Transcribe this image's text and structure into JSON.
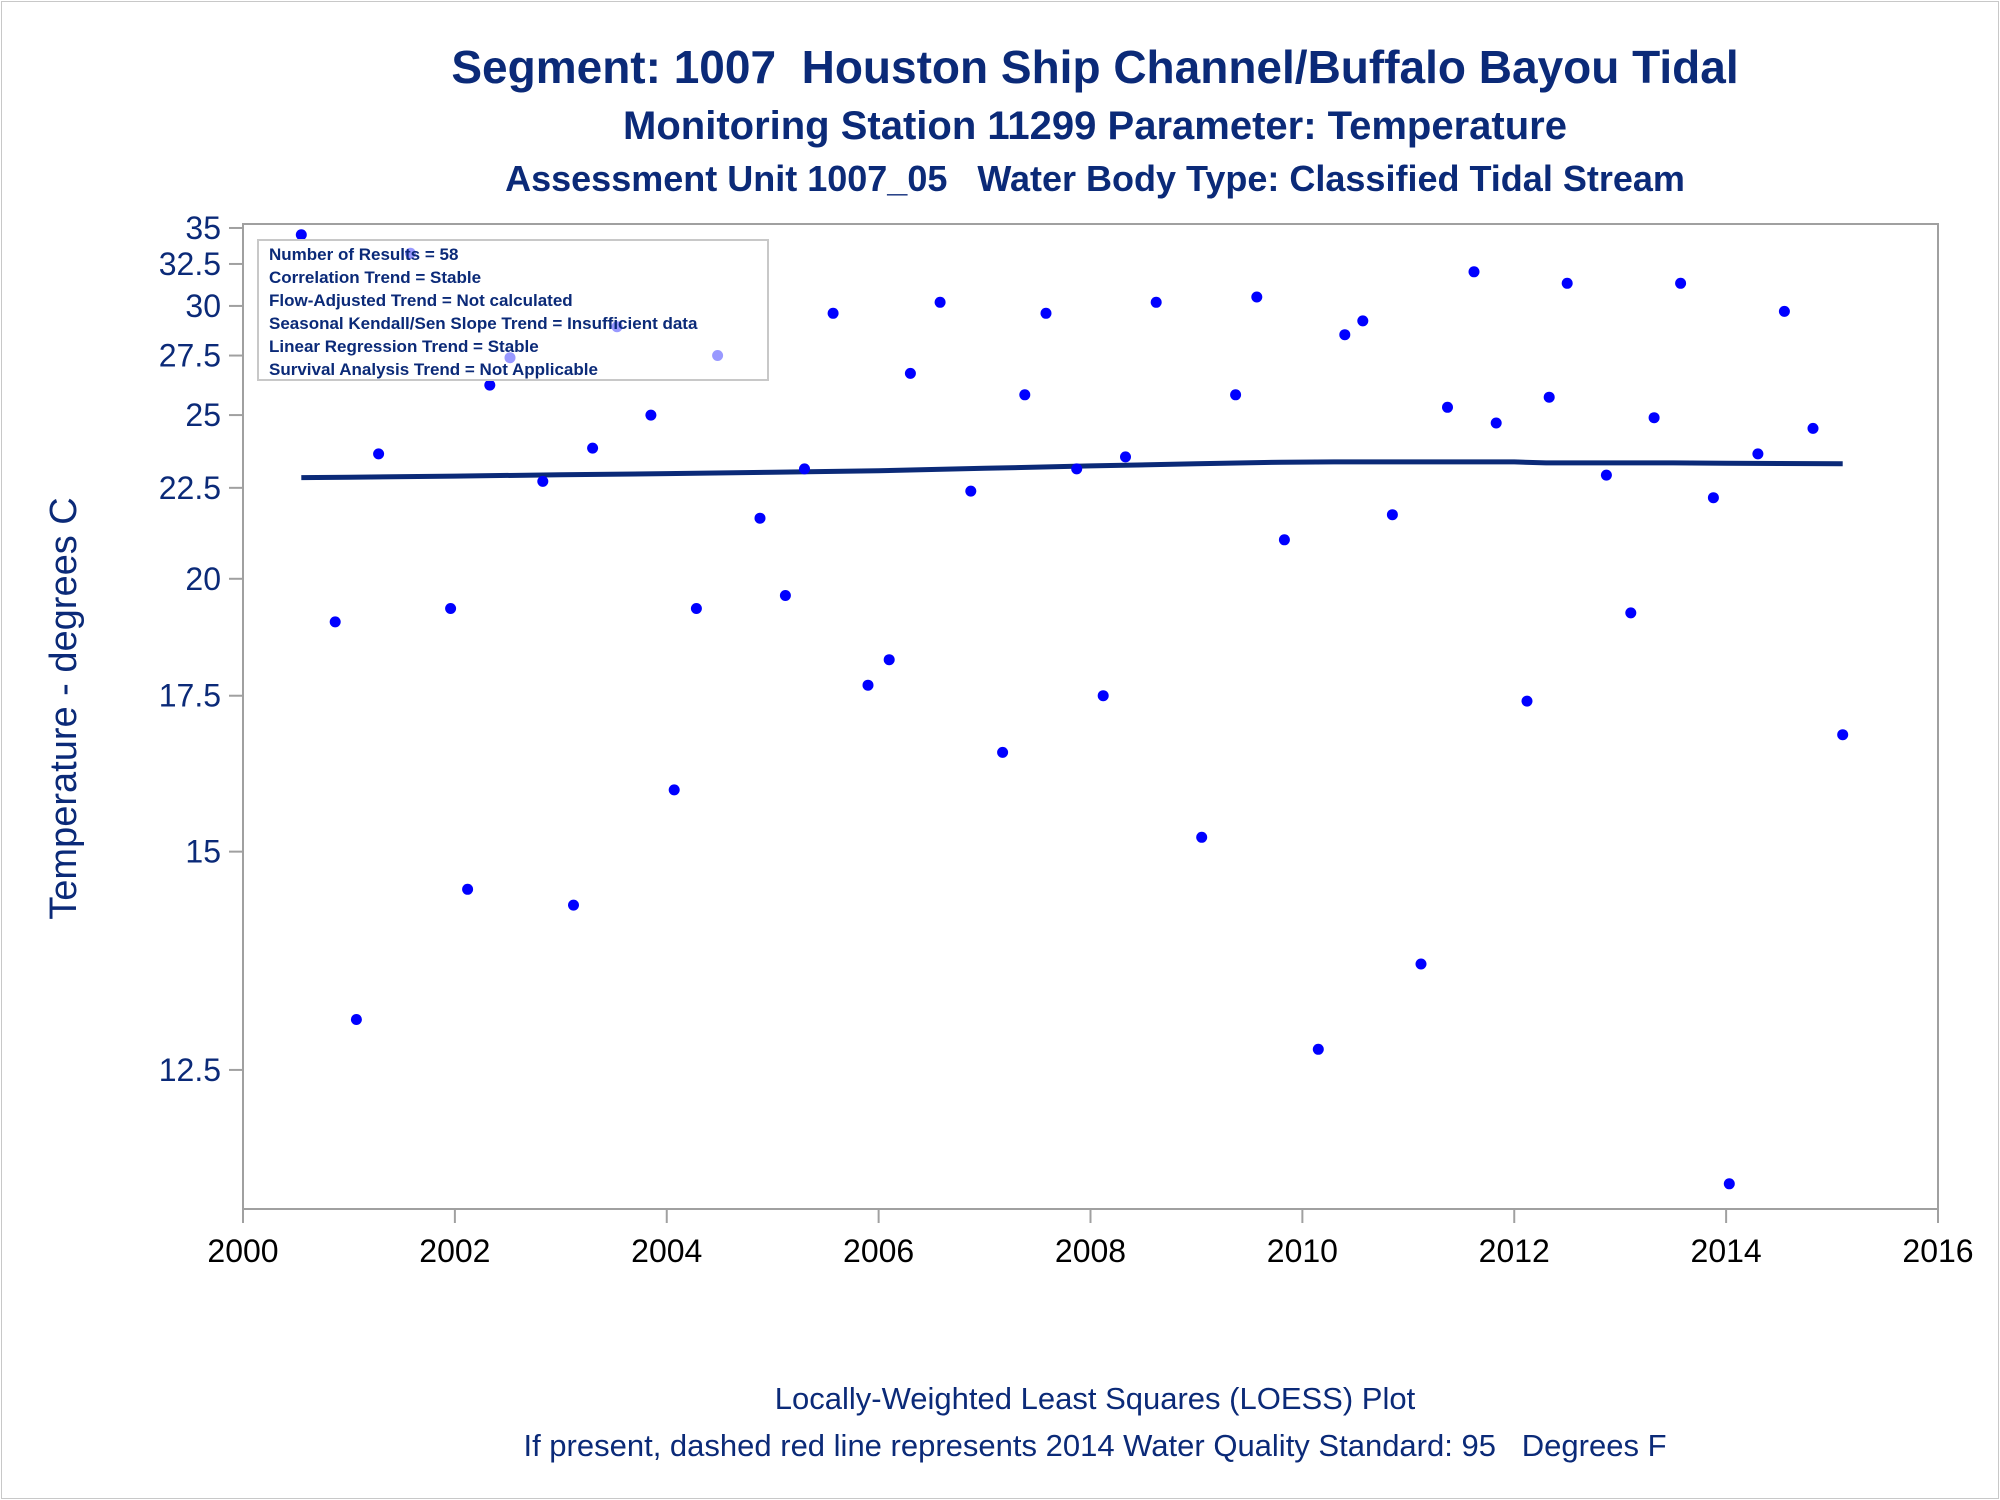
{
  "titles": {
    "line1": "Segment: 1007  Houston Ship Channel/Buffalo Bayou Tidal",
    "line2": "Monitoring Station 11299 Parameter: Temperature",
    "line3": "Assessment Unit 1007_05   Water Body Type: Classified Tidal Stream"
  },
  "footnotes": {
    "line1": "Locally-Weighted Least Squares (LOESS) Plot",
    "line2": "If present, dashed red line represents 2014 Water Quality Standard: 95   Degrees F"
  },
  "inset": {
    "lines": [
      "Number of Results = 58",
      "Correlation Trend = Stable",
      "Flow-Adjusted Trend = Not calculated",
      "Seasonal Kendall/Sen Slope Trend = Insufficient data",
      "Linear Regression Trend = Stable",
      "Survival Analysis Trend = Not Applicable"
    ]
  },
  "colors": {
    "points": "#0000ff",
    "trend_line": "#0b2a78",
    "text": "#0b2a78",
    "frame": "#a0a0a0"
  },
  "chart_data": {
    "type": "scatter",
    "xlabel": "",
    "ylabel": "Temperature - degrees C",
    "xlim": [
      2000,
      2016
    ],
    "ylim": [
      11.3,
      35.3
    ],
    "x_ticks": [
      2000,
      2002,
      2004,
      2006,
      2008,
      2010,
      2012,
      2014,
      2016
    ],
    "y_ticks": [
      "12.5",
      "15",
      "17.5",
      "20",
      "22.5",
      "25",
      "27.5",
      "30",
      "32.5",
      "35"
    ],
    "y_scale": "reciprocal",
    "grid": false,
    "points": {
      "x": [
        2000.55,
        2000.87,
        2001.07,
        2001.28,
        2001.58,
        2001.96,
        2002.12,
        2002.33,
        2002.52,
        2002.83,
        2003.12,
        2003.3,
        2003.53,
        2003.85,
        2004.07,
        2004.28,
        2004.48,
        2004.88,
        2005.12,
        2005.3,
        2005.57,
        2005.9,
        2006.1,
        2006.3,
        2006.58,
        2006.87,
        2007.17,
        2007.38,
        2007.58,
        2007.87,
        2008.12,
        2008.33,
        2008.62,
        2009.05,
        2009.37,
        2009.57,
        2009.83,
        2010.15,
        2010.4,
        2010.57,
        2010.85,
        2011.12,
        2011.37,
        2011.62,
        2011.83,
        2012.12,
        2012.33,
        2012.5,
        2012.87,
        2013.1,
        2013.32,
        2013.57,
        2013.88,
        2014.03,
        2014.3,
        2014.55,
        2014.82,
        2015.1
      ],
      "y": [
        34.5,
        19.0,
        13.0,
        23.6,
        33.2,
        19.3,
        14.5,
        26.2,
        27.4,
        22.7,
        14.3,
        23.8,
        28.9,
        25.0,
        15.9,
        19.3,
        27.5,
        21.6,
        19.6,
        23.1,
        29.6,
        17.7,
        18.2,
        26.7,
        30.2,
        22.4,
        16.5,
        25.8,
        29.6,
        23.1,
        17.5,
        23.5,
        30.2,
        15.2,
        25.8,
        30.5,
        21.0,
        12.7,
        28.5,
        29.2,
        21.7,
        13.6,
        25.3,
        32.0,
        24.7,
        17.4,
        25.7,
        31.3,
        22.9,
        19.2,
        24.9,
        31.3,
        22.2,
        11.5,
        23.6,
        29.7,
        24.5,
        16.8
      ]
    },
    "loess": {
      "x": [
        2000.55,
        2001.0,
        2002.0,
        2003.0,
        2004.0,
        2005.0,
        2006.0,
        2007.0,
        2008.0,
        2009.0,
        2009.8,
        2010.3,
        2011.0,
        2012.0,
        2012.3,
        2013.0,
        2013.5,
        2014.0,
        2014.5,
        2015.1
      ],
      "y": [
        22.82,
        22.83,
        22.87,
        22.91,
        22.95,
        22.99,
        23.04,
        23.12,
        23.2,
        23.27,
        23.32,
        23.33,
        23.33,
        23.33,
        23.3,
        23.3,
        23.3,
        23.29,
        23.28,
        23.27
      ]
    }
  }
}
